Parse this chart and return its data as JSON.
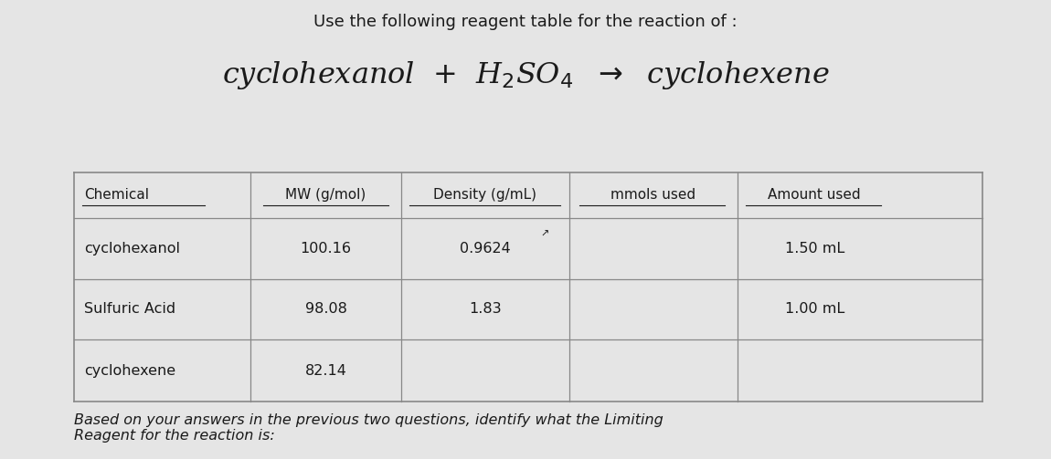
{
  "bg_color": "#e5e5e5",
  "title_text": "Use the following reagent table for the reaction of :",
  "col_headers": [
    "Chemical",
    "MW (g/mol)",
    "Density (g/mL)",
    "mmols used",
    "Amount used"
  ],
  "rows": [
    [
      "cyclohexanol",
      "100.16",
      "0.9624",
      "",
      "1.50 mL"
    ],
    [
      "Sulfuric Acid",
      "98.08",
      "1.83",
      "",
      "1.00 mL"
    ],
    [
      "cyclohexene",
      "82.14",
      "",
      "",
      ""
    ]
  ],
  "footer_text": "Based on your answers in the previous two questions, identify what the Limiting\nReagent for the reaction is:",
  "border_color": "#888888",
  "text_color": "#1a1a1a"
}
